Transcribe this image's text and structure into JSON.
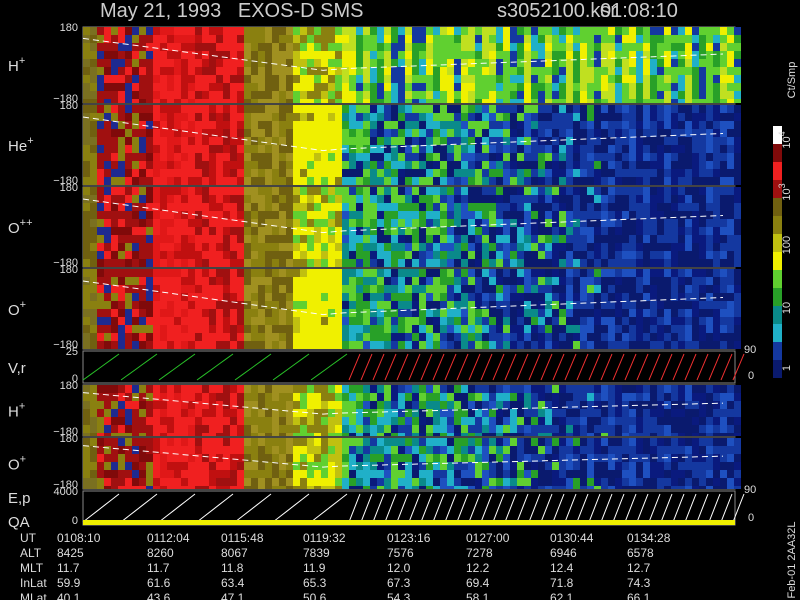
{
  "header": {
    "title": "May 21, 1993   EXOS-D SMS",
    "file": "s3052100.ksr",
    "time": "01:08:10"
  },
  "panels": [
    {
      "label": "H",
      "sup": "+",
      "ticks": [
        "180",
        "−180"
      ]
    },
    {
      "label": "He",
      "sup": "+",
      "ticks": [
        "180",
        "−180"
      ]
    },
    {
      "label": "O",
      "sup": "++",
      "ticks": [
        "180",
        "−180"
      ]
    },
    {
      "label": "O",
      "sup": "+",
      "ticks": [
        "180",
        "−180"
      ]
    },
    {
      "label": "V,r",
      "sup": "",
      "ticks": [
        "25",
        "0"
      ],
      "right": [
        "90",
        "0"
      ]
    },
    {
      "label": "H",
      "sup": "+",
      "ticks": [
        "180",
        "−180"
      ]
    },
    {
      "label": "O",
      "sup": "+",
      "ticks": [
        "180",
        "−180"
      ]
    },
    {
      "label": "E,p",
      "sup": "",
      "label2": "QA",
      "ticks": [
        "4000",
        "0"
      ],
      "right": [
        "90",
        "0"
      ]
    }
  ],
  "colorbar": {
    "unit": "Ct/Smp",
    "labels": [
      {
        "base": "10",
        "exp": "4"
      },
      {
        "base": "10",
        "exp": "3"
      },
      {
        "base": "100",
        "exp": ""
      },
      {
        "base": "10",
        "exp": ""
      },
      {
        "base": "1",
        "exp": ""
      }
    ]
  },
  "table": {
    "rows": [
      [
        "UT",
        "0108:10",
        "0112:04",
        "0115:48",
        "0119:32",
        "0123:16",
        "0127:00",
        "0130:44",
        "0134:28"
      ],
      [
        "ALT",
        "8425",
        "8260",
        "8067",
        "7839",
        "7576",
        "7278",
        "6946",
        "6578"
      ],
      [
        "MLT",
        "11.7",
        "11.7",
        "11.8",
        "11.9",
        "12.0",
        "12.2",
        "12.4",
        "12.7"
      ],
      [
        "InLat",
        "59.9",
        "61.6",
        "63.4",
        "65.3",
        "67.3",
        "69.4",
        "71.8",
        "74.3"
      ],
      [
        "MLat",
        "40.1",
        "43.6",
        "47.1",
        "50.6",
        "54.3",
        "58.1",
        "62.1",
        "66.1"
      ]
    ]
  },
  "footer": "Feb-01 2AA32L"
}
